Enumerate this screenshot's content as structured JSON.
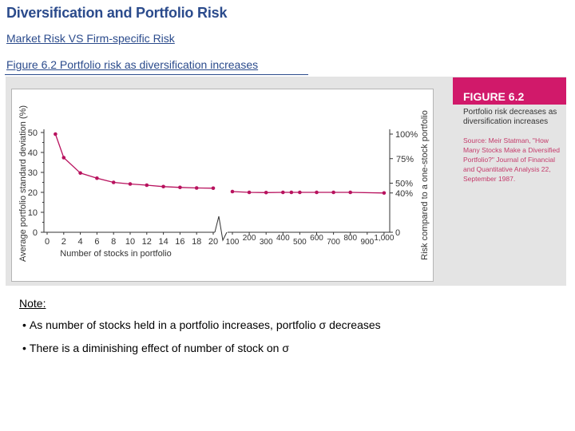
{
  "page": {
    "title": "Diversification and Portfolio Risk",
    "subtitle": "Market Risk VS Firm-specific Risk",
    "figure_link": "Figure 6.2 Portfolio risk as diversification increases"
  },
  "figure_panel": {
    "label": "FIGURE 6.2",
    "description": "Portfolio risk decreases as diversification increases",
    "source": "Source: Meir Statman, \"How Many Stocks Make a Diversified Portfolio?\" Journal of Financial and Quantitative Analysis 22, September 1987.",
    "accent_color": "#d1196a"
  },
  "notes": {
    "label": "Note:",
    "items": [
      "As number of stocks held in a portfolio increases, portfolio σ decreases",
      "There is a diminishing effect of number of stock on σ"
    ]
  },
  "chart_data": {
    "type": "line",
    "xlabel": "Number of stocks in portfolio",
    "ylabel": "Average portfolio standard deviation (%)",
    "ylabel_right": "Risk compared to a one-stock portfolio",
    "ylim": [
      0,
      50
    ],
    "y_ticks": [
      "0",
      "10",
      "20",
      "30",
      "40",
      "50"
    ],
    "right_ticks": [
      {
        "label": "100%",
        "value": 49.2
      },
      {
        "label": "75%",
        "value": 36.9
      },
      {
        "label": "50%",
        "value": 24.6
      },
      {
        "label": "40%",
        "value": 19.7
      },
      {
        "label": "0",
        "value": 0
      }
    ],
    "x_ticks_left": [
      "0",
      "2",
      "4",
      "6",
      "8",
      "10",
      "12",
      "14",
      "16",
      "18",
      "20"
    ],
    "x_ticks_right": [
      "100",
      "200",
      "300",
      "400",
      "500",
      "600",
      "700",
      "800",
      "900",
      "1,000"
    ],
    "series": [
      {
        "points": [
          {
            "x": 1,
            "y": 49.2
          },
          {
            "x": 2,
            "y": 37.4
          },
          {
            "x": 4,
            "y": 29.7
          },
          {
            "x": 6,
            "y": 27.1
          },
          {
            "x": 8,
            "y": 25.0
          },
          {
            "x": 10,
            "y": 24.2
          },
          {
            "x": 12,
            "y": 23.6
          },
          {
            "x": 14,
            "y": 22.9
          },
          {
            "x": 16,
            "y": 22.5
          },
          {
            "x": 18,
            "y": 22.2
          },
          {
            "x": 20,
            "y": 22.1
          },
          {
            "x": 100,
            "y": 20.4
          },
          {
            "x": 200,
            "y": 20.0
          },
          {
            "x": 300,
            "y": 19.9
          },
          {
            "x": 400,
            "y": 20.0
          },
          {
            "x": 450,
            "y": 20.0
          },
          {
            "x": 500,
            "y": 20.0
          },
          {
            "x": 600,
            "y": 20.0
          },
          {
            "x": 700,
            "y": 20.0
          },
          {
            "x": 800,
            "y": 20.0
          },
          {
            "x": 1000,
            "y": 19.7
          }
        ]
      }
    ],
    "line_color": "#b8125e",
    "marker_color": "#b8125e"
  }
}
